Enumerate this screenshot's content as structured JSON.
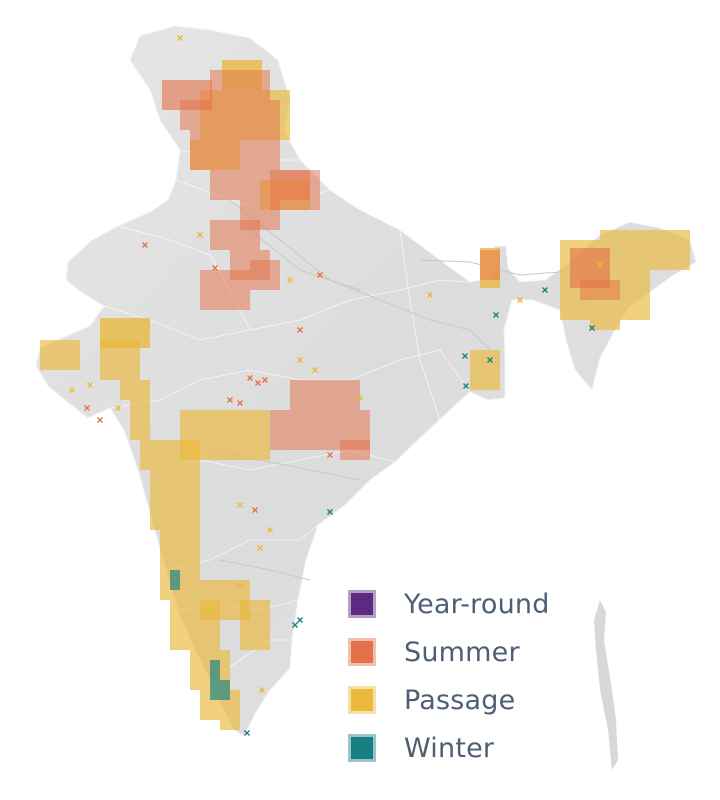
{
  "colors": {
    "land": "#dedede",
    "land_shade": "#cfcfcf",
    "border": "#ffffff",
    "year_round": "#5c2a80",
    "summer": "#e4734b",
    "passage": "#e9b93c",
    "winter": "#177f83"
  },
  "legend": {
    "items": [
      {
        "label": "Year-round",
        "color": "#5c2a80",
        "icon": "square-swatch"
      },
      {
        "label": "Summer",
        "color": "#e4734b",
        "icon": "square-swatch"
      },
      {
        "label": "Passage",
        "color": "#e9b93c",
        "icon": "square-swatch"
      },
      {
        "label": "Winter",
        "color": "#177f83",
        "icon": "square-swatch"
      }
    ]
  }
}
